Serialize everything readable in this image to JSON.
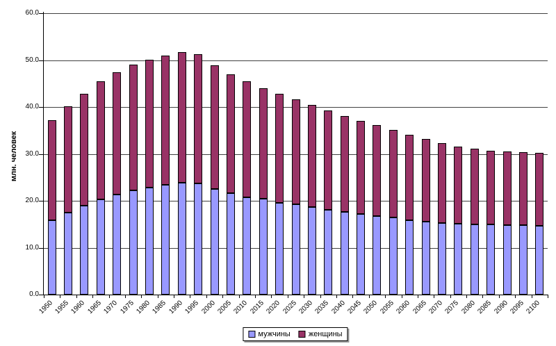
{
  "chart_data": {
    "type": "bar",
    "stacked": true,
    "title": "",
    "xlabel": "",
    "ylabel": "млн. человек",
    "ylim": [
      0,
      60
    ],
    "ytick_step": 10,
    "ytick_labels": [
      "0.0",
      "10.0",
      "20.0",
      "30.0",
      "40.0",
      "50.0",
      "60.0"
    ],
    "grid": true,
    "legend_position": "bottom-center",
    "axis_color": "#000000",
    "grid_color": "#404040",
    "background_color": "#ffffff",
    "categories": [
      "1950",
      "1955",
      "1960",
      "1965",
      "1970",
      "1975",
      "1980",
      "1985",
      "1990",
      "1995",
      "2000",
      "2005",
      "2010",
      "2015",
      "2020",
      "2025",
      "2030",
      "2035",
      "2040",
      "2045",
      "2050",
      "2055",
      "2060",
      "2065",
      "2070",
      "2075",
      "2080",
      "2085",
      "2090",
      "2095",
      "2100"
    ],
    "series": [
      {
        "name": "мужчины",
        "color": "#9999FF",
        "values": [
          15.9,
          17.5,
          19.0,
          20.3,
          21.3,
          22.2,
          22.8,
          23.4,
          23.9,
          23.7,
          22.5,
          21.7,
          20.8,
          20.4,
          19.6,
          19.2,
          18.6,
          18.1,
          17.6,
          17.2,
          16.8,
          16.5,
          15.9,
          15.5,
          15.3,
          15.1,
          15.0,
          14.9,
          14.8,
          14.8,
          14.7
        ]
      },
      {
        "name": "женщины",
        "color": "#993366",
        "values": [
          21.3,
          22.7,
          23.8,
          25.2,
          26.1,
          26.8,
          27.3,
          27.6,
          27.8,
          27.5,
          26.4,
          25.3,
          24.7,
          23.6,
          23.2,
          22.5,
          21.9,
          21.2,
          20.5,
          19.8,
          19.3,
          18.6,
          18.2,
          17.7,
          17.0,
          16.5,
          16.1,
          15.8,
          15.7,
          15.5,
          15.5
        ]
      }
    ]
  }
}
